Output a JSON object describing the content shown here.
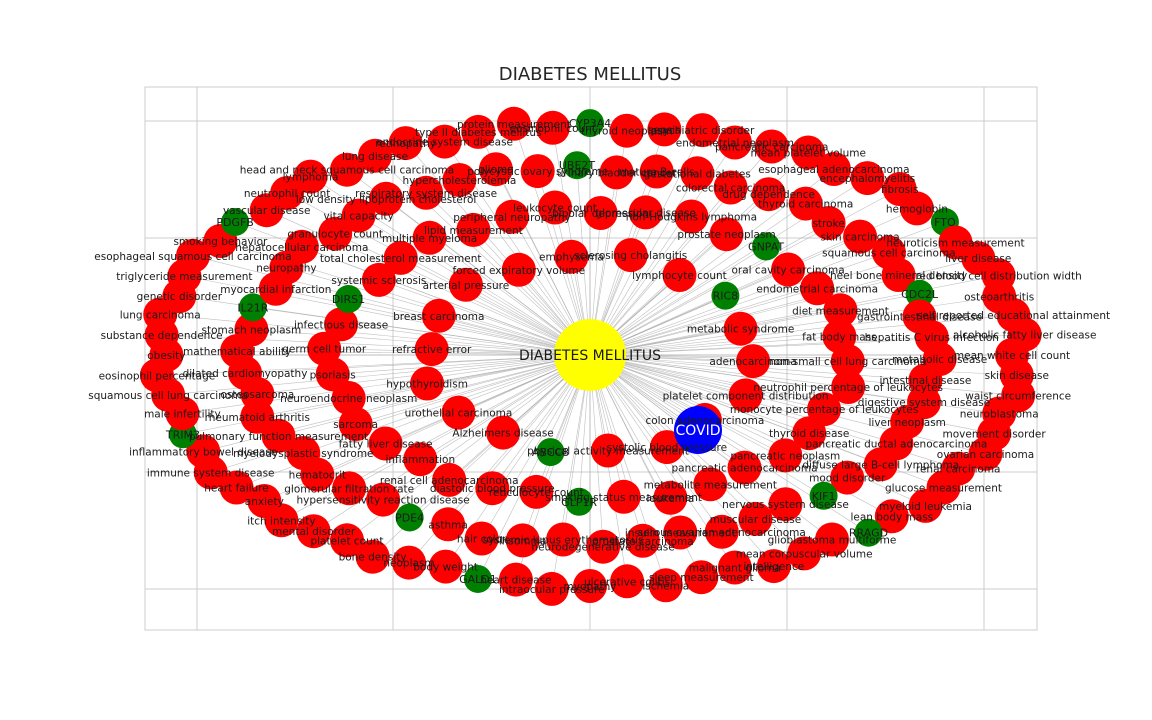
{
  "title": "DIABETES MELLITUS",
  "colors": {
    "center": "#ffff00",
    "covid": "#0000ff",
    "disease": "#ff0000",
    "gene": "#008000",
    "edge": "#a9a9a9",
    "grid": "#cccccc",
    "frame_bg": "#ffffff"
  },
  "center_node": "DIABETES MELLITUS",
  "covid_node": "COVID",
  "genes": [
    "RRAGD",
    "GALD1",
    "TRIM3",
    "PDGFB",
    "CYP3A4",
    "FTO",
    "KIF1",
    "PDE4",
    "IL21R",
    "UBE2T",
    "CDC2L",
    "GLP1R",
    "DIRS1",
    "GNPAT",
    "ABCC8",
    "RIC8"
  ],
  "diseases": [
    "mean white cell count",
    "skin disease",
    "waist circumference",
    "neuroblastoma",
    "movement disorder",
    "ovarian carcinoma",
    "renal carcinoma",
    "glucose measurement",
    "myeloid leukemia",
    "lean body mass",
    "glioblastoma multiforme",
    "mean corpuscular volume",
    "intelligence",
    "malignant glioma",
    "sleep measurement",
    "ischemia",
    "ulcerative colitis",
    "myopathy",
    "intraocular pressure",
    "heart disease",
    "body weight",
    "neoplasm",
    "bone density",
    "platelet count",
    "mental disorder",
    "itch intensity",
    "anxiety",
    "heart failure",
    "immune system disease",
    "inflammatory bowel disease",
    "male infertility",
    "squamous cell lung carcinoma",
    "eosinophil percentage",
    "obesity",
    "substance dependence",
    "lung carcinoma",
    "genetic disorder",
    "triglyceride measurement",
    "esophageal squamous cell carcinoma",
    "smoking behavior",
    "vascular disease",
    "neutrophil count",
    "lymphoma",
    "head and neck squamous cell carcinoma",
    "lung disease",
    "retinopathy",
    "endocrine system disease",
    "type II diabetes mellitus",
    "protein measurement",
    "eosinophil count",
    "thyroid neoplasm",
    "sepsis",
    "psychiatric disorder",
    "endometrial neoplasm",
    "pancreatic carcinoma",
    "mean platelet volume",
    "esophageal adenocarcinoma",
    "encephalomyelitis",
    "fibrosis",
    "hemoglobin",
    "neuroticism measurement",
    "liver disease",
    "red blood cell distribution width",
    "osteoarthritis",
    "self reported educational attainment",
    "alcoholic fatty liver disease",
    "liver neoplasm",
    "pancreatic ductal adenocarcinoma",
    "diffuse large B-cell lymphoma",
    "mood disorder",
    "nervous system disease",
    "muscular disease",
    "serous ovarian adenocarcinoma",
    "insulin measurement",
    "prostate carcinoma",
    "neurodegenerative disease",
    "systemic lupus erythematosus",
    "insomnia",
    "hair color",
    "asthma",
    "hypersensitivity reaction disease",
    "glomerular filtration rate",
    "hematocrit",
    "myelodysplastic syndrome",
    "pulmonary function measurement",
    "rheumatoid arthritis",
    "osteosarcoma",
    "dilated cardiomyopathy",
    "mathematical ability",
    "stomach neoplasm",
    "myocardial infarction",
    "neuropathy",
    "hepatocellular carcinoma",
    "granulocyte count",
    "vital capacity",
    "low density lipoprotein cholesterol",
    "respiratory system disease",
    "hypercholesterolemia",
    "glioma",
    "polycystic ovary syndrome",
    "urinary bladder cancer",
    "mature B-cells",
    "gestational diabetes",
    "colorectal carcinoma",
    "drug dependence",
    "thyroid carcinoma",
    "stroke",
    "skin carcinoma",
    "squamous cell carcinoma",
    "heel bone mineral density",
    "gastrointestinal disease",
    "hepatitis C virus infection",
    "metabolic disease",
    "intestinal disease",
    "digestive system disease",
    "pancreatic neoplasm",
    "pancreatic adenocarcinoma",
    "metabolite measurement",
    "leukemia",
    "smoking status measurement",
    "reticulocyte count",
    "diastolic blood pressure",
    "renal cell adenocarcinoma",
    "inflammation",
    "fatty liver disease",
    "sarcoma",
    "neuroendocrine neoplasm",
    "psoriasis",
    "germ cell tumor",
    "infectious disease",
    "systemic sclerosis",
    "total cholesterol measurement",
    "multiple myeloma",
    "lipid measurement",
    "peripheral neuropathy",
    "leukocyte count",
    "bipolar depression",
    "glomerular disease",
    "non-Hodgkins lymphoma",
    "prostate neoplasm",
    "oral cavity carcinoma",
    "endometrial carcinoma",
    "diet measurement",
    "fat body mass",
    "non-small cell lung carcinoma",
    "neutrophil percentage of leukocytes",
    "monocyte percentage of leukocytes",
    "thyroid disease",
    "systolic blood pressure",
    "physical activity measurement",
    "Alzheimers disease",
    "urothelial carcinoma",
    "hypothyroidism",
    "refractive error",
    "breast carcinoma",
    "arterial pressure",
    "forced expiratory volume",
    "emphysema",
    "sclerosing cholangitis",
    "lymphocyte count",
    "metabolic syndrome",
    "adenocarcinoma",
    "platelet component distribution",
    "colon adenocarcinoma"
  ]
}
